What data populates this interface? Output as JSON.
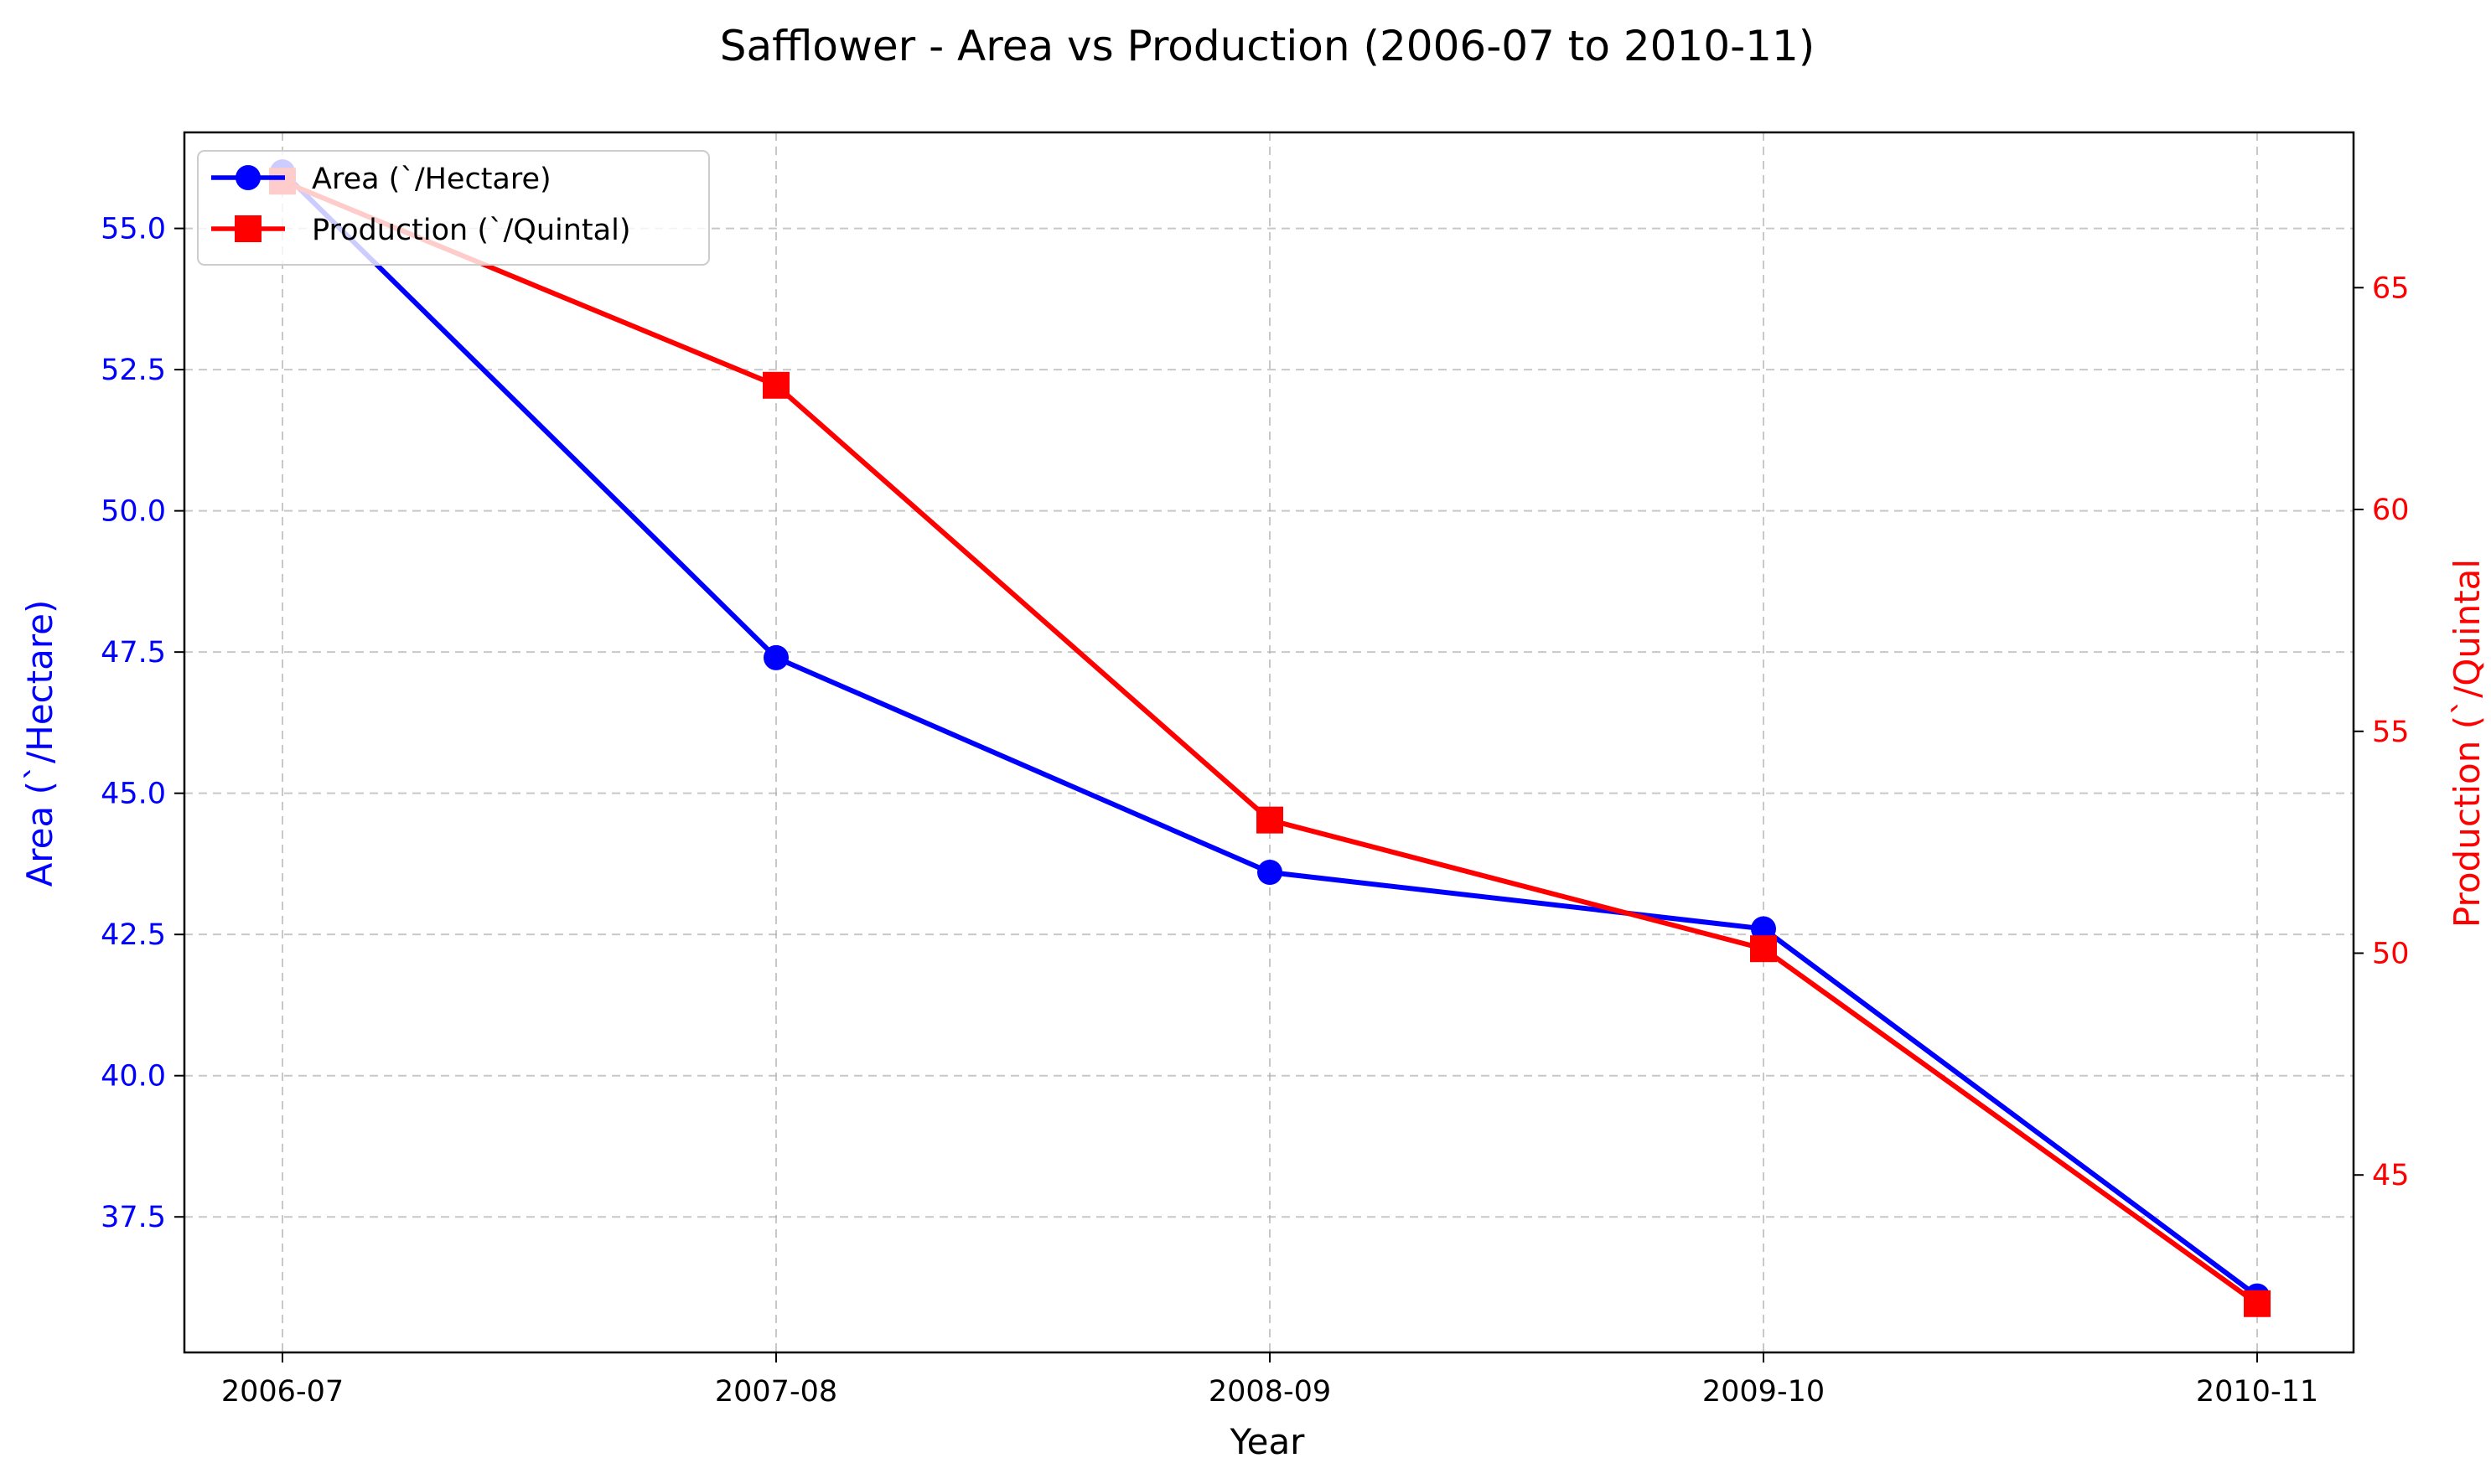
{
  "chart_data": {
    "type": "line",
    "title": "Safflower - Area vs Production (2006-07 to 2010-11)",
    "xlabel": "Year",
    "categories": [
      "2006-07",
      "2007-08",
      "2008-09",
      "2009-10",
      "2010-11"
    ],
    "grid": true,
    "legend_position": "top-left",
    "series": [
      {
        "name": "Area (`/Hectare)",
        "axis": "left",
        "marker": "circle",
        "color": "#0000ff",
        "values": [
          56.0,
          47.4,
          43.6,
          42.6,
          36.1
        ]
      },
      {
        "name": "Production (`/Quintal)",
        "axis": "right",
        "marker": "square",
        "color": "#ff0000",
        "values": [
          67.4,
          62.8,
          53.0,
          50.1,
          42.1
        ]
      }
    ],
    "y_left": {
      "label": "Area (`/Hectare)",
      "color": "#0000ff",
      "ylim": [
        35.1,
        56.7
      ],
      "ticks": [
        "37.5",
        "40.0",
        "42.5",
        "45.0",
        "47.5",
        "50.0",
        "52.5",
        "55.0"
      ]
    },
    "y_right": {
      "label": "Production (`/Quintal",
      "color": "#ff0000",
      "ylim": [
        41.0,
        68.5
      ],
      "ticks": [
        "45",
        "50",
        "55",
        "60",
        "65"
      ]
    }
  }
}
